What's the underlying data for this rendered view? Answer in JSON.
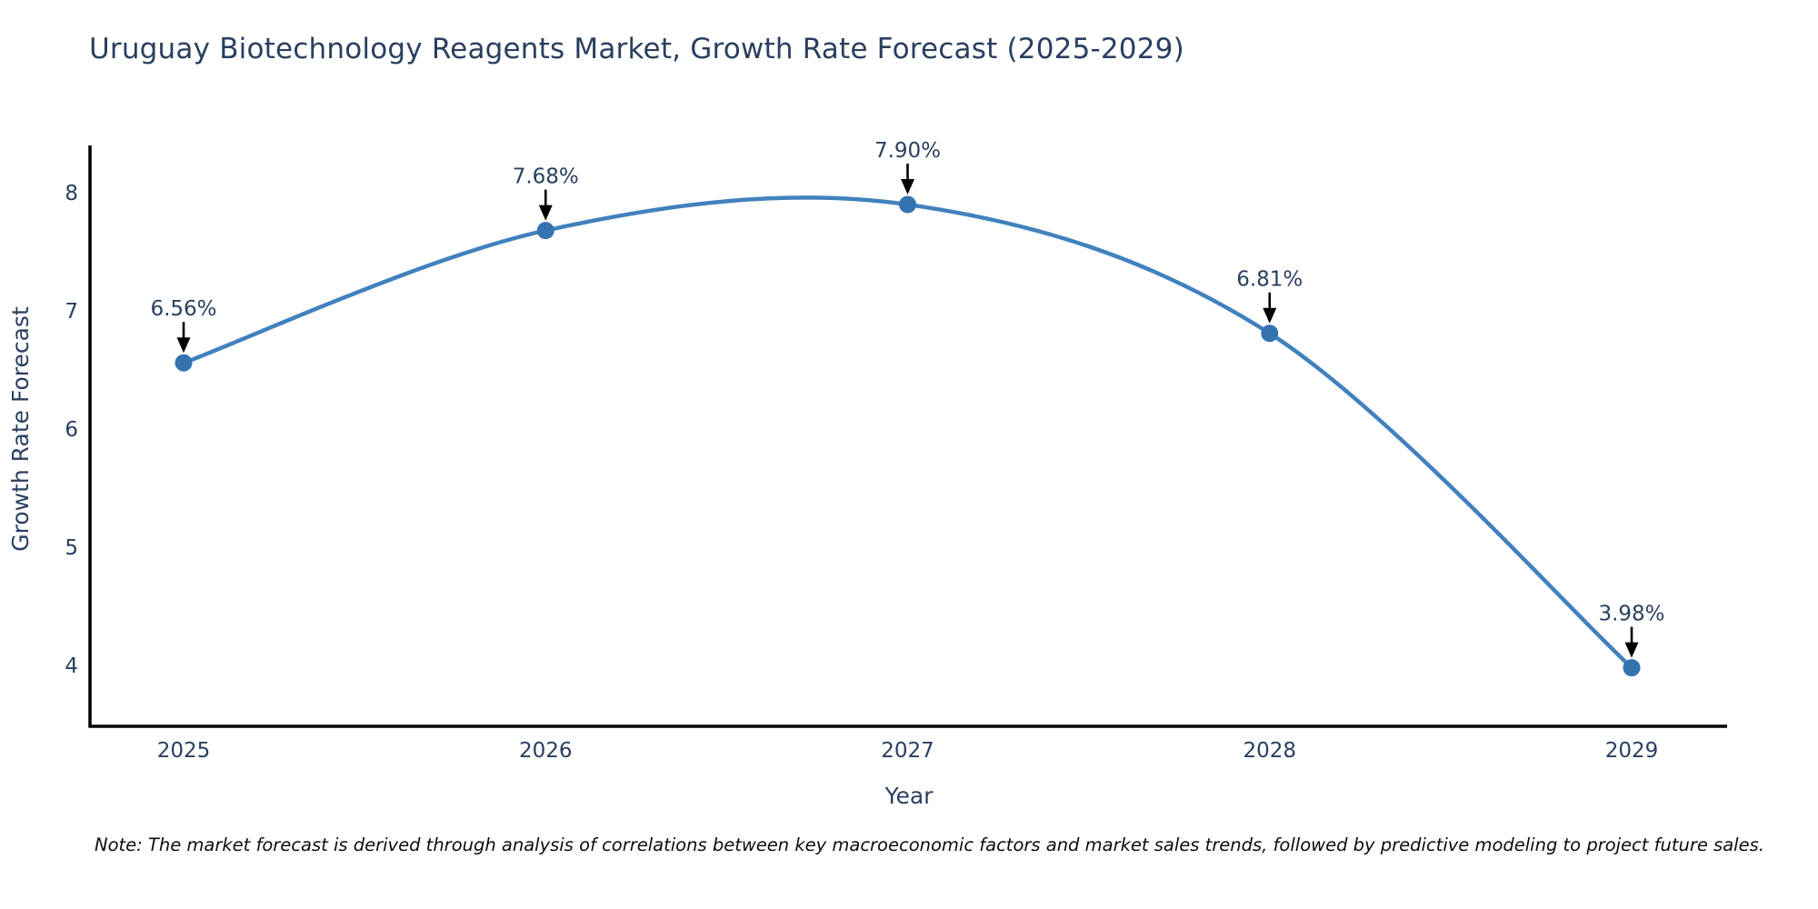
{
  "title": "Uruguay Biotechnology Reagents Market, Growth Rate Forecast (2025-2029)",
  "note": "Note: The market forecast is derived through analysis of correlations between key macroeconomic factors and market sales trends, followed by predictive modeling to project future sales.",
  "chart_data": {
    "type": "line",
    "title": "Uruguay Biotechnology Reagents Market, Growth Rate Forecast (2025-2029)",
    "xlabel": "Year",
    "ylabel": "Growth Rate Forecast",
    "x": [
      2025,
      2026,
      2027,
      2028,
      2029
    ],
    "x_tick_labels": [
      "2025",
      "2026",
      "2027",
      "2028",
      "2029"
    ],
    "y_ticks": [
      4,
      5,
      6,
      7,
      8
    ],
    "ylim": [
      3.48,
      8.42
    ],
    "xlim": [
      2024.74,
      2029.26
    ],
    "grid": false,
    "legend_position": "none",
    "series": [
      {
        "name": "Growth Rate Forecast",
        "values": [
          6.56,
          7.68,
          7.9,
          6.81,
          3.98
        ],
        "point_labels": [
          "6.56%",
          "7.68%",
          "7.90%",
          "6.81%",
          "3.98%"
        ],
        "smooth": true
      }
    ],
    "colors": {
      "line": "#4181bd",
      "marker": "#3572b0",
      "axis": "#000000",
      "tick_text": "#2a3f5f",
      "annotation_text": "#2a3f5f",
      "annotation_arrow": "#000000"
    }
  }
}
